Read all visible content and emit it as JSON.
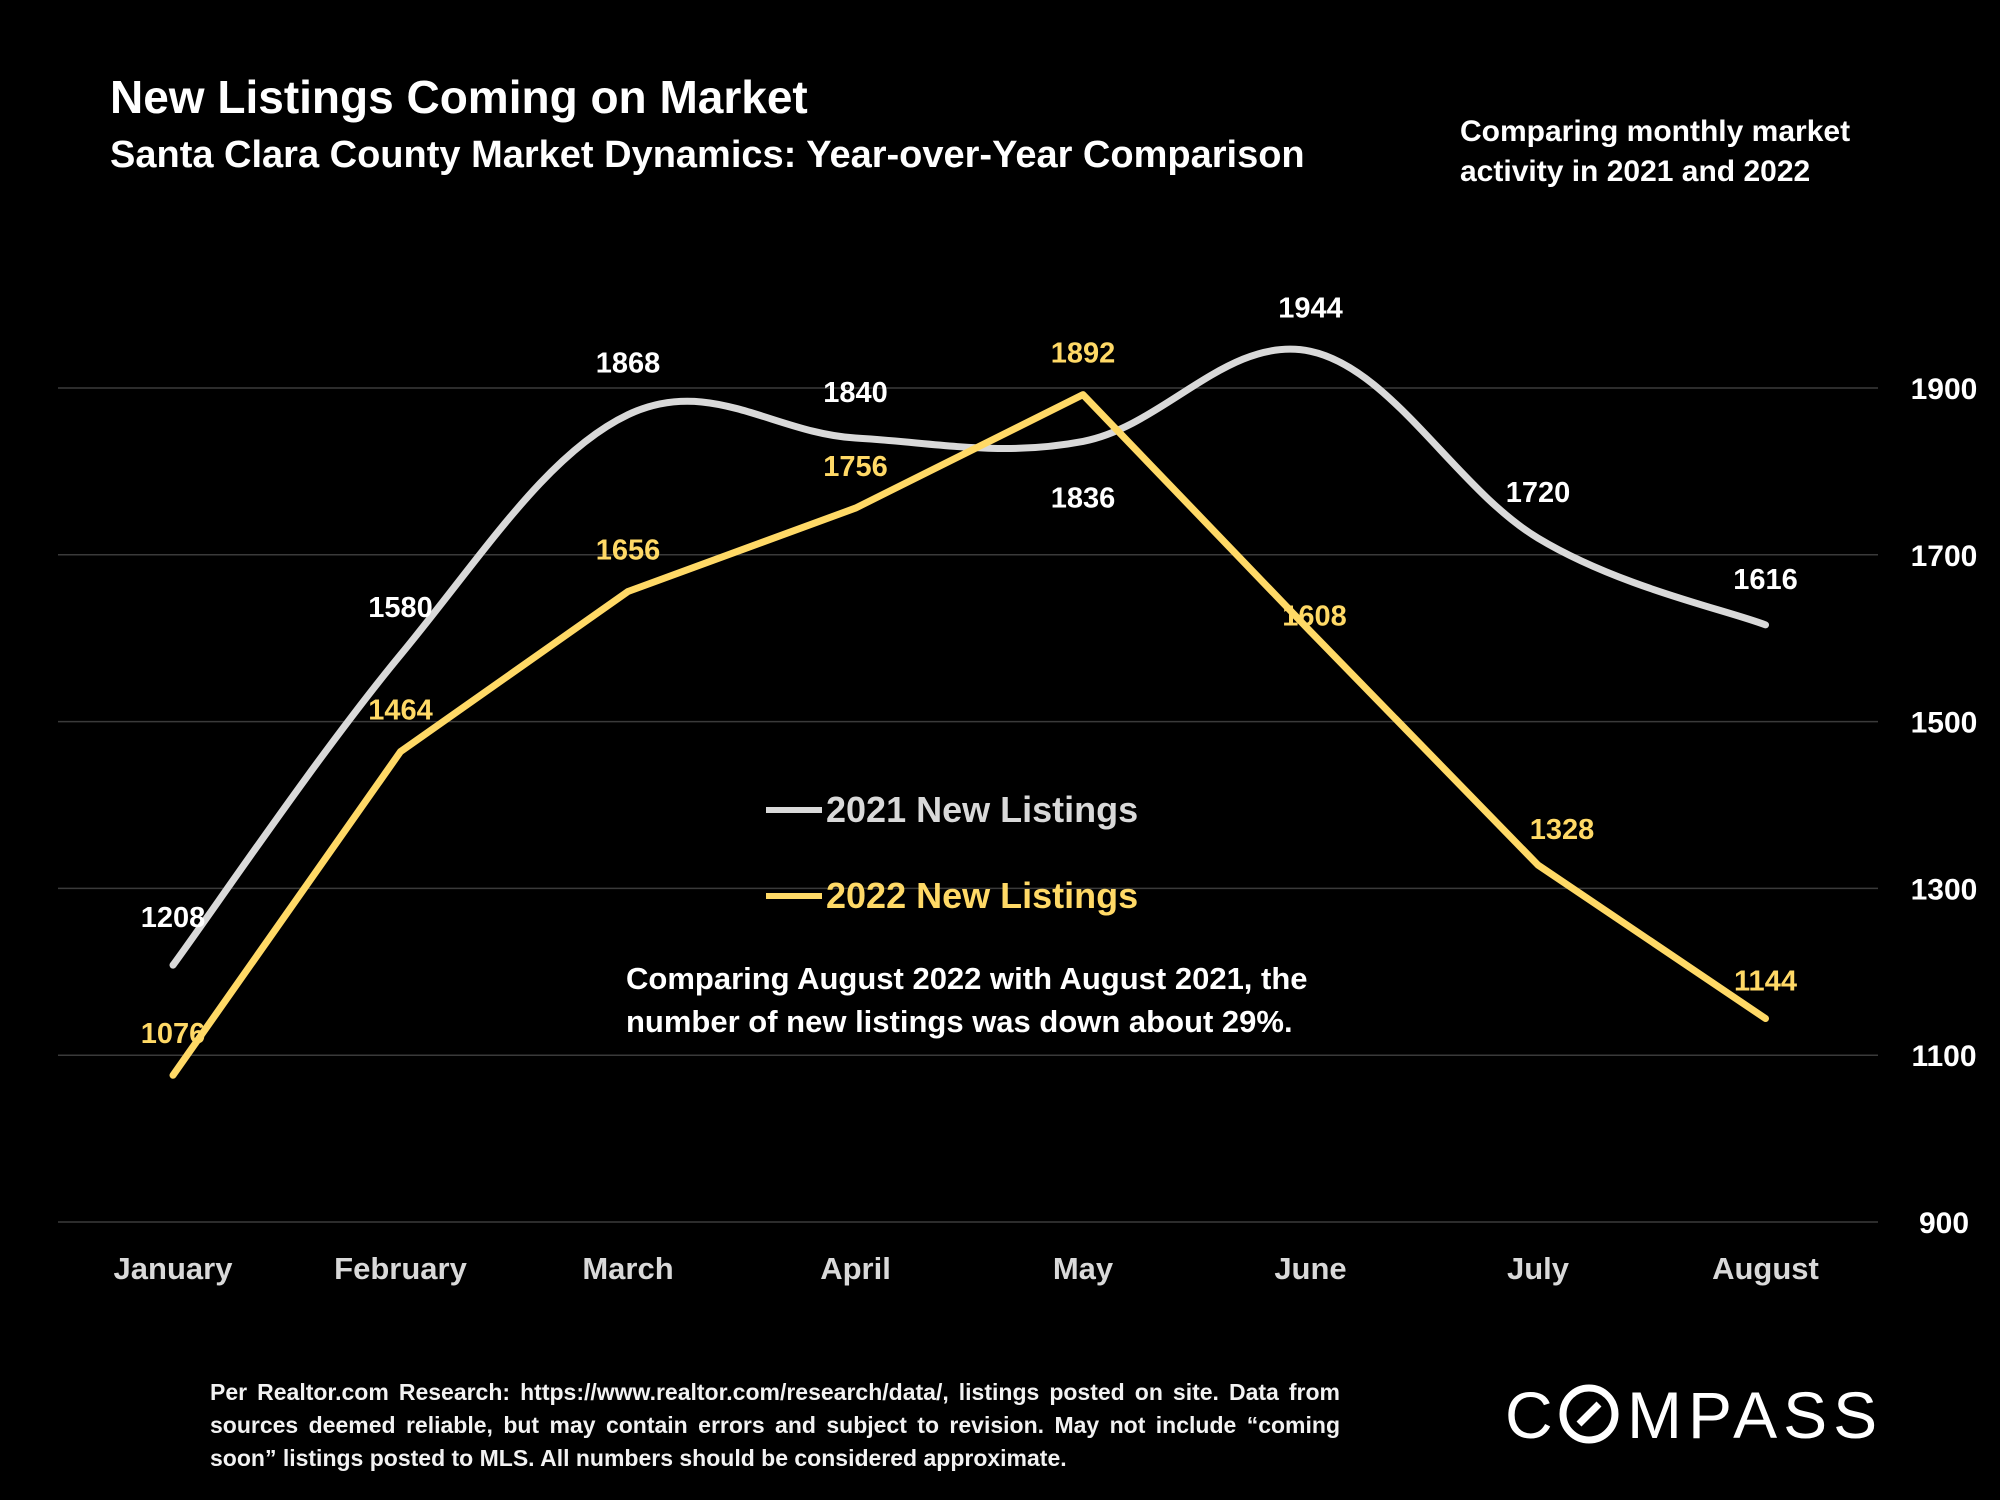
{
  "header": {
    "title": "New Listings Coming on Market",
    "subtitle": "Santa Clara County Market Dynamics: Year-over-Year Comparison",
    "side_note": "Comparing monthly market activity in 2021 and 2022"
  },
  "chart_data": {
    "type": "line",
    "categories": [
      "January",
      "February",
      "March",
      "April",
      "May",
      "June",
      "July",
      "August"
    ],
    "series": [
      {
        "name": "2021 New Listings",
        "color": "#d9d9d9",
        "smooth": true,
        "values": [
          1208,
          1580,
          1868,
          1840,
          1836,
          1944,
          1720,
          1616
        ]
      },
      {
        "name": "2022 New Listings",
        "color": "#ffd966",
        "smooth": false,
        "values": [
          1076,
          1464,
          1656,
          1756,
          1892,
          1608,
          1328,
          1144
        ]
      }
    ],
    "y_ticks": [
      900,
      1100,
      1300,
      1500,
      1700,
      1900
    ],
    "ylim": [
      900,
      2100
    ],
    "y_axis_side": "right",
    "grid": true,
    "legend": "center",
    "annotation": "Comparing August 2022 with August 2021, the number of new listings was down about 29%."
  },
  "footer": {
    "note": "Per Realtor.com Research: https://www.realtor.com/research/data/, listings posted on site. Data from sources deemed reliable, but may contain errors and subject to revision. May not include “coming soon” listings posted to MLS. All numbers should be considered approximate.",
    "logo_text": "COMPASS"
  }
}
